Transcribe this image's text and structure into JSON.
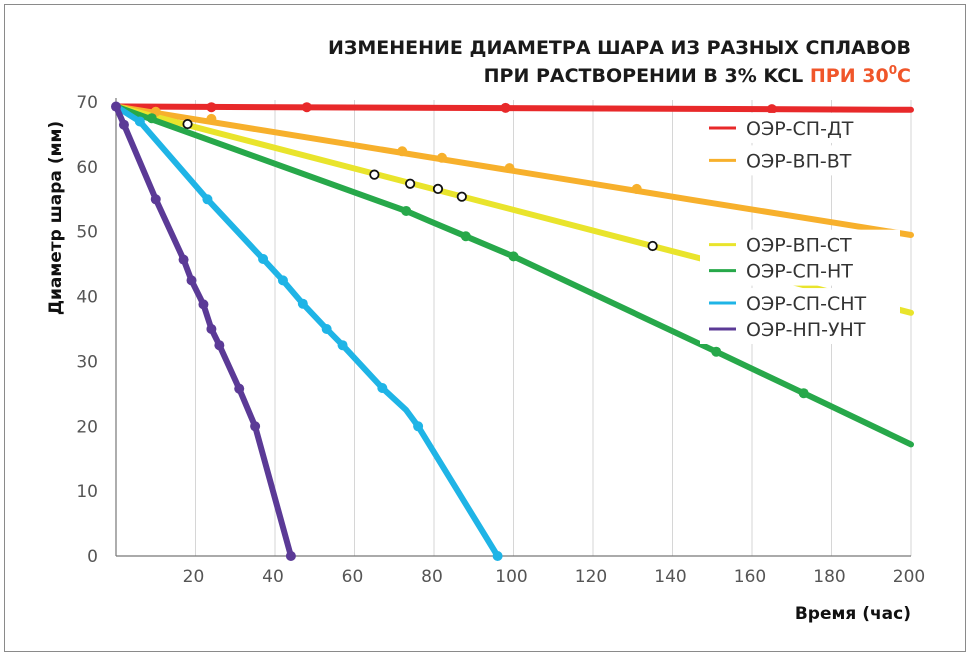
{
  "chart_data": {
    "type": "line",
    "title_line1": "ИЗМЕНЕНИЕ ДИАМЕТРА ШАРА ИЗ РАЗНЫХ СПЛАВОВ",
    "title_line2_main": "ПРИ РАСТВОРЕНИИ В 3% KCL ",
    "title_line2_accent": "ПРИ 30",
    "title_line2_sup": "0",
    "title_line2_end": "С",
    "xlabel": "Время (час)",
    "ylabel": "Диаметр шара (мм)",
    "xlim": [
      0,
      200
    ],
    "ylim": [
      0,
      70
    ],
    "xticks": [
      "20",
      "40",
      "60",
      "80",
      "100",
      "120",
      "140",
      "160",
      "180",
      "200"
    ],
    "yticks": [
      "0",
      "10",
      "20",
      "30",
      "40",
      "50",
      "60",
      "70"
    ],
    "grid": "vertical",
    "legend_position": "right",
    "series": [
      {
        "name": "ОЭР-СП-ДТ",
        "color": "#e8292a",
        "legend_y": 66,
        "line": [
          [
            0,
            69.3
          ],
          [
            200,
            68.8
          ]
        ],
        "markers": [
          [
            24,
            69.2
          ],
          [
            48,
            69.2
          ],
          [
            98,
            69.1
          ],
          [
            165,
            68.9
          ]
        ]
      },
      {
        "name": "ОЭР-ВП-ВТ",
        "color": "#f7b02c",
        "legend_y": 61,
        "line": [
          [
            0,
            69.3
          ],
          [
            145,
            54.9
          ],
          [
            145,
            54.9
          ],
          [
            200,
            49.5
          ]
        ],
        "markers": [
          [
            10,
            68.5
          ],
          [
            24,
            67.4
          ],
          [
            72,
            62.4
          ],
          [
            82,
            61.4
          ],
          [
            99,
            59.8
          ],
          [
            131,
            56.6
          ]
        ]
      },
      {
        "name": "ОЭР-ВП-СТ",
        "color": "#e9e42c",
        "legend_y": 48,
        "line": [
          [
            0,
            69.3
          ],
          [
            145,
            46.2
          ],
          [
            200,
            37.5
          ]
        ],
        "markers": [],
        "open_markers": [
          [
            18,
            66.6
          ],
          [
            65,
            58.8
          ],
          [
            74,
            57.4
          ],
          [
            81,
            56.6
          ],
          [
            87,
            55.4
          ],
          [
            135,
            47.8
          ]
        ]
      },
      {
        "name": "ОЭР-СП-НТ",
        "color": "#27a84a",
        "legend_y": 44,
        "line": [
          [
            0,
            69.3
          ],
          [
            73,
            53.2
          ],
          [
            79,
            51.6
          ],
          [
            88,
            49.3
          ],
          [
            100,
            46.2
          ],
          [
            151,
            31.5
          ],
          [
            173,
            25.1
          ],
          [
            200,
            17.2
          ]
        ],
        "markers": [
          [
            9,
            67.5
          ],
          [
            73,
            53.2
          ],
          [
            88,
            49.3
          ],
          [
            100,
            46.2
          ],
          [
            151,
            31.5
          ],
          [
            173,
            25.1
          ]
        ]
      },
      {
        "name": "ОЭР-СП-СНТ",
        "color": "#1fb4e6",
        "legend_y": 39,
        "line": [
          [
            0,
            69.3
          ],
          [
            6,
            67
          ],
          [
            23,
            55
          ],
          [
            37,
            45.8
          ],
          [
            42,
            42.5
          ],
          [
            47,
            38.9
          ],
          [
            53,
            35.0
          ],
          [
            57,
            32.5
          ],
          [
            67,
            25.9
          ],
          [
            73,
            22.5
          ],
          [
            76,
            20
          ],
          [
            96,
            0
          ]
        ],
        "markers": [
          [
            6,
            67
          ],
          [
            23,
            55
          ],
          [
            37,
            45.8
          ],
          [
            42,
            42.5
          ],
          [
            47,
            38.9
          ],
          [
            53,
            35.0
          ],
          [
            57,
            32.5
          ],
          [
            67,
            25.9
          ],
          [
            76,
            20
          ],
          [
            96,
            0
          ]
        ]
      },
      {
        "name": "ОЭР-НП-УНТ",
        "color": "#5b3a96",
        "legend_y": 35,
        "line": [
          [
            0,
            69.3
          ],
          [
            2,
            66.5
          ],
          [
            10,
            55
          ],
          [
            17,
            45.7
          ],
          [
            19,
            42.5
          ],
          [
            22,
            38.8
          ],
          [
            24,
            35
          ],
          [
            26,
            32.5
          ],
          [
            31,
            25.8
          ],
          [
            35,
            20
          ],
          [
            44,
            0
          ]
        ],
        "markers": [
          [
            0,
            69.3
          ],
          [
            2,
            66.5
          ],
          [
            10,
            55
          ],
          [
            17,
            45.7
          ],
          [
            19,
            42.5
          ],
          [
            22,
            38.8
          ],
          [
            24,
            35
          ],
          [
            26,
            32.5
          ],
          [
            31,
            25.8
          ],
          [
            35,
            20
          ],
          [
            44,
            0
          ]
        ]
      }
    ]
  }
}
